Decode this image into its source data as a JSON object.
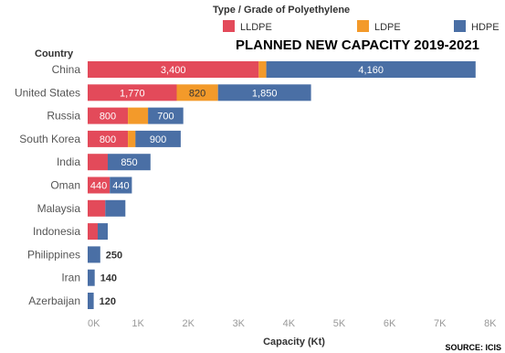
{
  "chart_data": {
    "type": "bar",
    "orientation": "horizontal",
    "stacked": true,
    "title": "PLANNED NEW CAPACITY 2019-2021",
    "legend_title": "Type / Grade of Polyethylene",
    "legend_position": "top",
    "category_axis_title": "Country",
    "xlabel": "Capacity (Kt)",
    "source": "SOURCE: ICIS",
    "xlim": [
      0,
      8000
    ],
    "x_ticks": [
      0,
      1000,
      2000,
      3000,
      4000,
      5000,
      6000,
      7000,
      8000
    ],
    "x_tick_labels": [
      "0K",
      "1K",
      "2K",
      "3K",
      "4K",
      "5K",
      "6K",
      "7K",
      "8K"
    ],
    "grid": false,
    "categories": [
      "China",
      "United States",
      "Russia",
      "South Korea",
      "India",
      "Oman",
      "Malaysia",
      "Indonesia",
      "Philippines",
      "Iran",
      "Azerbaijan"
    ],
    "series": [
      {
        "name": "LLDPE",
        "color": "#e34a5a",
        "values": [
          3400,
          1770,
          800,
          800,
          400,
          440,
          350,
          200,
          0,
          0,
          0
        ],
        "labels": [
          "3,400",
          "1,770",
          "800",
          "800",
          "",
          "440",
          "",
          "",
          "",
          "",
          ""
        ]
      },
      {
        "name": "LDPE",
        "color": "#f39a2a",
        "values": [
          150,
          820,
          400,
          150,
          0,
          0,
          0,
          0,
          0,
          0,
          0
        ],
        "labels": [
          "",
          "820",
          "",
          "",
          "",
          "",
          "",
          "",
          "",
          "",
          ""
        ]
      },
      {
        "name": "HDPE",
        "color": "#4a6fa5",
        "values": [
          4160,
          1850,
          700,
          900,
          850,
          440,
          400,
          200,
          250,
          140,
          120
        ],
        "labels": [
          "4,160",
          "1,850",
          "700",
          "900",
          "850",
          "440",
          "",
          "",
          "250",
          "140",
          "120"
        ]
      }
    ]
  }
}
